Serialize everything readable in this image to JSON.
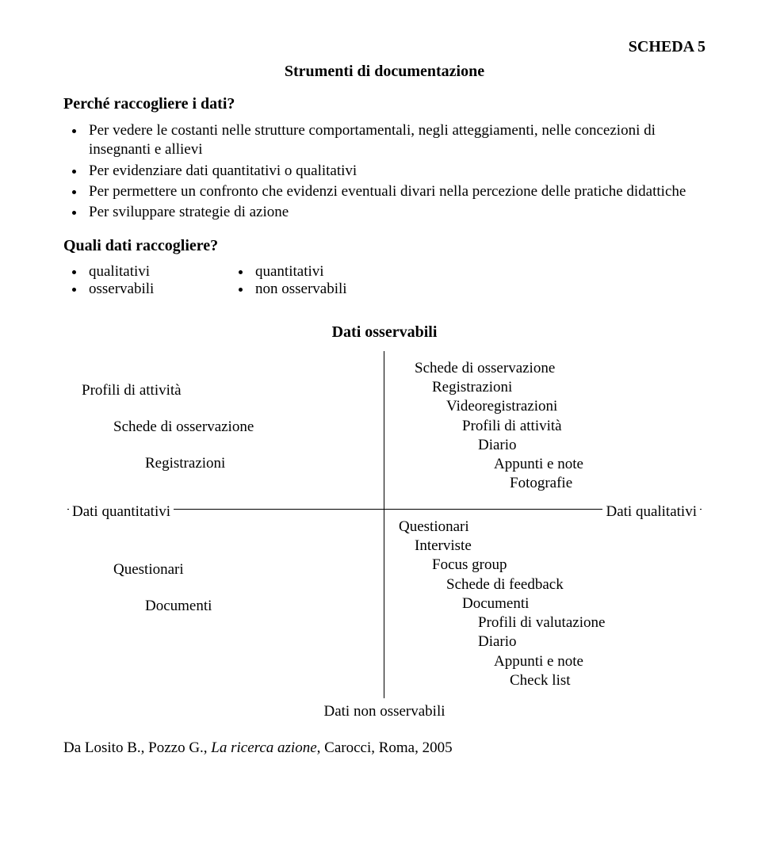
{
  "header": {
    "scheda": "SCHEDA 5",
    "title": "Strumenti di documentazione"
  },
  "section1": {
    "heading": "Perché raccogliere i dati?",
    "items": [
      "Per vedere le costanti  nelle strutture comportamentali, negli atteggiamenti, nelle concezioni di insegnanti e allievi",
      "Per evidenziare dati quantitativi o qualitativi",
      "Per permettere un confronto che evidenzi eventuali divari nella percezione delle pratiche didattiche",
      "Per sviluppare strategie di azione"
    ]
  },
  "section2": {
    "heading": "Quali dati raccogliere?",
    "row1": {
      "left": "qualitativi",
      "right": "quantitativi"
    },
    "row2": {
      "left": "osservabili",
      "right": "non osservabili"
    }
  },
  "cross": {
    "top_title": "Dati osservabili",
    "bottom_title": "Dati non osservabili",
    "left_axis": "Dati quantitativi",
    "right_axis": "Dati qualitativi",
    "q_tl": {
      "l1": "Profili di attività",
      "l2": "Schede di osservazione",
      "l3": "Registrazioni"
    },
    "q_tr": {
      "l1": "Schede di osservazione",
      "l2": "Registrazioni",
      "l3": "Videoregistrazioni",
      "l4": "Profili di attività",
      "l5": "Diario",
      "l6": "Appunti e note",
      "l7": "Fotografie"
    },
    "q_bl": {
      "l1": "Questionari",
      "l2": "Documenti"
    },
    "q_br": {
      "l1": "Questionari",
      "l2": "Interviste",
      "l3": "Focus group",
      "l4": "Schede di feedback",
      "l5": "Documenti",
      "l6": "Profili di valutazione",
      "l7": "Diario",
      "l8": "Appunti e note",
      "l9": "Check list"
    }
  },
  "citation": "Da Losito B., Pozzo G., La ricerca azione, Carocci, Roma, 2005"
}
